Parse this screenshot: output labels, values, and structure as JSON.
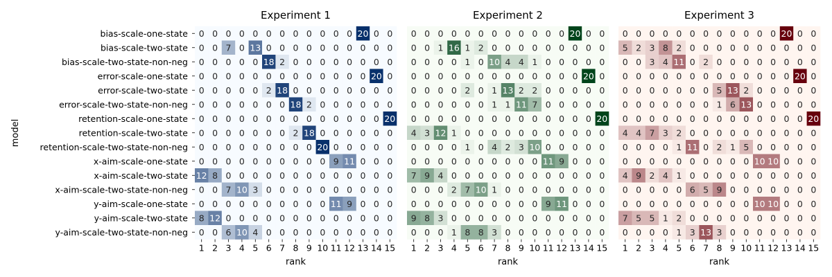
{
  "figure": {
    "ylabel": "model",
    "models": [
      "bias-scale-one-state",
      "bias-scale-two-state",
      "bias-scale-two-state-non-neg",
      "error-scale-one-state",
      "error-scale-two-state",
      "error-scale-two-state-non-neg",
      "retention-scale-one-state",
      "retention-scale-two-state",
      "retention-scale-two-state-non-neg",
      "x-aim-scale-one-state",
      "x-aim-scale-two-state",
      "x-aim-scale-two-state-non-neg",
      "y-aim-scale-one-state",
      "y-aim-scale-two-state",
      "y-aim-scale-two-state-non-neg"
    ],
    "ranks": [
      "1",
      "2",
      "3",
      "4",
      "5",
      "6",
      "7",
      "8",
      "9",
      "10",
      "11",
      "12",
      "13",
      "14",
      "15"
    ]
  },
  "chart_data": [
    {
      "type": "heatmap",
      "title": "Experiment 1",
      "xlabel": "rank",
      "ylabel": "model",
      "colormap": "Blues",
      "colors": [
        "#f7fbff",
        "#08306b"
      ],
      "value_range": [
        0,
        20
      ],
      "values": [
        [
          0,
          0,
          0,
          0,
          0,
          0,
          0,
          0,
          0,
          0,
          0,
          0,
          20,
          0,
          0
        ],
        [
          0,
          0,
          7,
          0,
          13,
          0,
          0,
          0,
          0,
          0,
          0,
          0,
          0,
          0,
          0
        ],
        [
          0,
          0,
          0,
          0,
          0,
          18,
          2,
          0,
          0,
          0,
          0,
          0,
          0,
          0,
          0
        ],
        [
          0,
          0,
          0,
          0,
          0,
          0,
          0,
          0,
          0,
          0,
          0,
          0,
          0,
          20,
          0
        ],
        [
          0,
          0,
          0,
          0,
          0,
          2,
          18,
          0,
          0,
          0,
          0,
          0,
          0,
          0,
          0
        ],
        [
          0,
          0,
          0,
          0,
          0,
          0,
          0,
          18,
          2,
          0,
          0,
          0,
          0,
          0,
          0
        ],
        [
          0,
          0,
          0,
          0,
          0,
          0,
          0,
          0,
          0,
          0,
          0,
          0,
          0,
          0,
          20
        ],
        [
          0,
          0,
          0,
          0,
          0,
          0,
          0,
          2,
          18,
          0,
          0,
          0,
          0,
          0,
          0
        ],
        [
          0,
          0,
          0,
          0,
          0,
          0,
          0,
          0,
          0,
          20,
          0,
          0,
          0,
          0,
          0
        ],
        [
          0,
          0,
          0,
          0,
          0,
          0,
          0,
          0,
          0,
          0,
          9,
          11,
          0,
          0,
          0
        ],
        [
          12,
          8,
          0,
          0,
          0,
          0,
          0,
          0,
          0,
          0,
          0,
          0,
          0,
          0,
          0
        ],
        [
          0,
          0,
          7,
          10,
          3,
          0,
          0,
          0,
          0,
          0,
          0,
          0,
          0,
          0,
          0
        ],
        [
          0,
          0,
          0,
          0,
          0,
          0,
          0,
          0,
          0,
          0,
          11,
          9,
          0,
          0,
          0
        ],
        [
          8,
          12,
          0,
          0,
          0,
          0,
          0,
          0,
          0,
          0,
          0,
          0,
          0,
          0,
          0
        ],
        [
          0,
          0,
          6,
          10,
          4,
          0,
          0,
          0,
          0,
          0,
          0,
          0,
          0,
          0,
          0
        ]
      ]
    },
    {
      "type": "heatmap",
      "title": "Experiment 2",
      "xlabel": "rank",
      "ylabel": "",
      "colormap": "Greens",
      "colors": [
        "#f7fcf5",
        "#00441b"
      ],
      "value_range": [
        0,
        20
      ],
      "values": [
        [
          0,
          0,
          0,
          0,
          0,
          0,
          0,
          0,
          0,
          0,
          0,
          0,
          20,
          0,
          0
        ],
        [
          0,
          0,
          1,
          16,
          1,
          2,
          0,
          0,
          0,
          0,
          0,
          0,
          0,
          0,
          0
        ],
        [
          0,
          0,
          0,
          0,
          1,
          0,
          10,
          4,
          4,
          1,
          0,
          0,
          0,
          0,
          0
        ],
        [
          0,
          0,
          0,
          0,
          0,
          0,
          0,
          0,
          0,
          0,
          0,
          0,
          0,
          20,
          0
        ],
        [
          0,
          0,
          0,
          0,
          2,
          0,
          1,
          13,
          2,
          2,
          0,
          0,
          0,
          0,
          0
        ],
        [
          0,
          0,
          0,
          0,
          0,
          0,
          1,
          1,
          11,
          7,
          0,
          0,
          0,
          0,
          0
        ],
        [
          0,
          0,
          0,
          0,
          0,
          0,
          0,
          0,
          0,
          0,
          0,
          0,
          0,
          0,
          20
        ],
        [
          4,
          3,
          12,
          1,
          0,
          0,
          0,
          0,
          0,
          0,
          0,
          0,
          0,
          0,
          0
        ],
        [
          0,
          0,
          0,
          0,
          1,
          0,
          4,
          2,
          3,
          10,
          0,
          0,
          0,
          0,
          0
        ],
        [
          0,
          0,
          0,
          0,
          0,
          0,
          0,
          0,
          0,
          0,
          11,
          9,
          0,
          0,
          0
        ],
        [
          7,
          9,
          4,
          0,
          0,
          0,
          0,
          0,
          0,
          0,
          0,
          0,
          0,
          0,
          0
        ],
        [
          0,
          0,
          0,
          2,
          7,
          10,
          1,
          0,
          0,
          0,
          0,
          0,
          0,
          0,
          0
        ],
        [
          0,
          0,
          0,
          0,
          0,
          0,
          0,
          0,
          0,
          0,
          9,
          11,
          0,
          0,
          0
        ],
        [
          9,
          8,
          3,
          0,
          0,
          0,
          0,
          0,
          0,
          0,
          0,
          0,
          0,
          0,
          0
        ],
        [
          0,
          0,
          0,
          1,
          8,
          8,
          3,
          0,
          0,
          0,
          0,
          0,
          0,
          0,
          0
        ]
      ]
    },
    {
      "type": "heatmap",
      "title": "Experiment 3",
      "xlabel": "rank",
      "ylabel": "",
      "colormap": "Reds",
      "colors": [
        "#fff5f0",
        "#67000d"
      ],
      "value_range": [
        0,
        20
      ],
      "values": [
        [
          0,
          0,
          0,
          0,
          0,
          0,
          0,
          0,
          0,
          0,
          0,
          0,
          20,
          0,
          0
        ],
        [
          5,
          2,
          3,
          8,
          2,
          0,
          0,
          0,
          0,
          0,
          0,
          0,
          0,
          0,
          0
        ],
        [
          0,
          0,
          3,
          4,
          11,
          0,
          2,
          0,
          0,
          0,
          0,
          0,
          0,
          0,
          0
        ],
        [
          0,
          0,
          0,
          0,
          0,
          0,
          0,
          0,
          0,
          0,
          0,
          0,
          0,
          20,
          0
        ],
        [
          0,
          0,
          0,
          0,
          0,
          0,
          0,
          5,
          13,
          2,
          0,
          0,
          0,
          0,
          0
        ],
        [
          0,
          0,
          0,
          0,
          0,
          0,
          0,
          1,
          6,
          13,
          0,
          0,
          0,
          0,
          0
        ],
        [
          0,
          0,
          0,
          0,
          0,
          0,
          0,
          0,
          0,
          0,
          0,
          0,
          0,
          0,
          20
        ],
        [
          4,
          4,
          7,
          3,
          2,
          0,
          0,
          0,
          0,
          0,
          0,
          0,
          0,
          0,
          0
        ],
        [
          0,
          0,
          0,
          0,
          1,
          11,
          0,
          2,
          1,
          5,
          0,
          0,
          0,
          0,
          0
        ],
        [
          0,
          0,
          0,
          0,
          0,
          0,
          0,
          0,
          0,
          0,
          10,
          10,
          0,
          0,
          0
        ],
        [
          4,
          9,
          2,
          4,
          1,
          0,
          0,
          0,
          0,
          0,
          0,
          0,
          0,
          0,
          0
        ],
        [
          0,
          0,
          0,
          0,
          0,
          6,
          5,
          9,
          0,
          0,
          0,
          0,
          0,
          0,
          0
        ],
        [
          0,
          0,
          0,
          0,
          0,
          0,
          0,
          0,
          0,
          0,
          10,
          10,
          0,
          0,
          0
        ],
        [
          7,
          5,
          5,
          1,
          2,
          0,
          0,
          0,
          0,
          0,
          0,
          0,
          0,
          0,
          0
        ],
        [
          0,
          0,
          0,
          0,
          1,
          3,
          13,
          3,
          0,
          0,
          0,
          0,
          0,
          0,
          0
        ]
      ]
    }
  ]
}
